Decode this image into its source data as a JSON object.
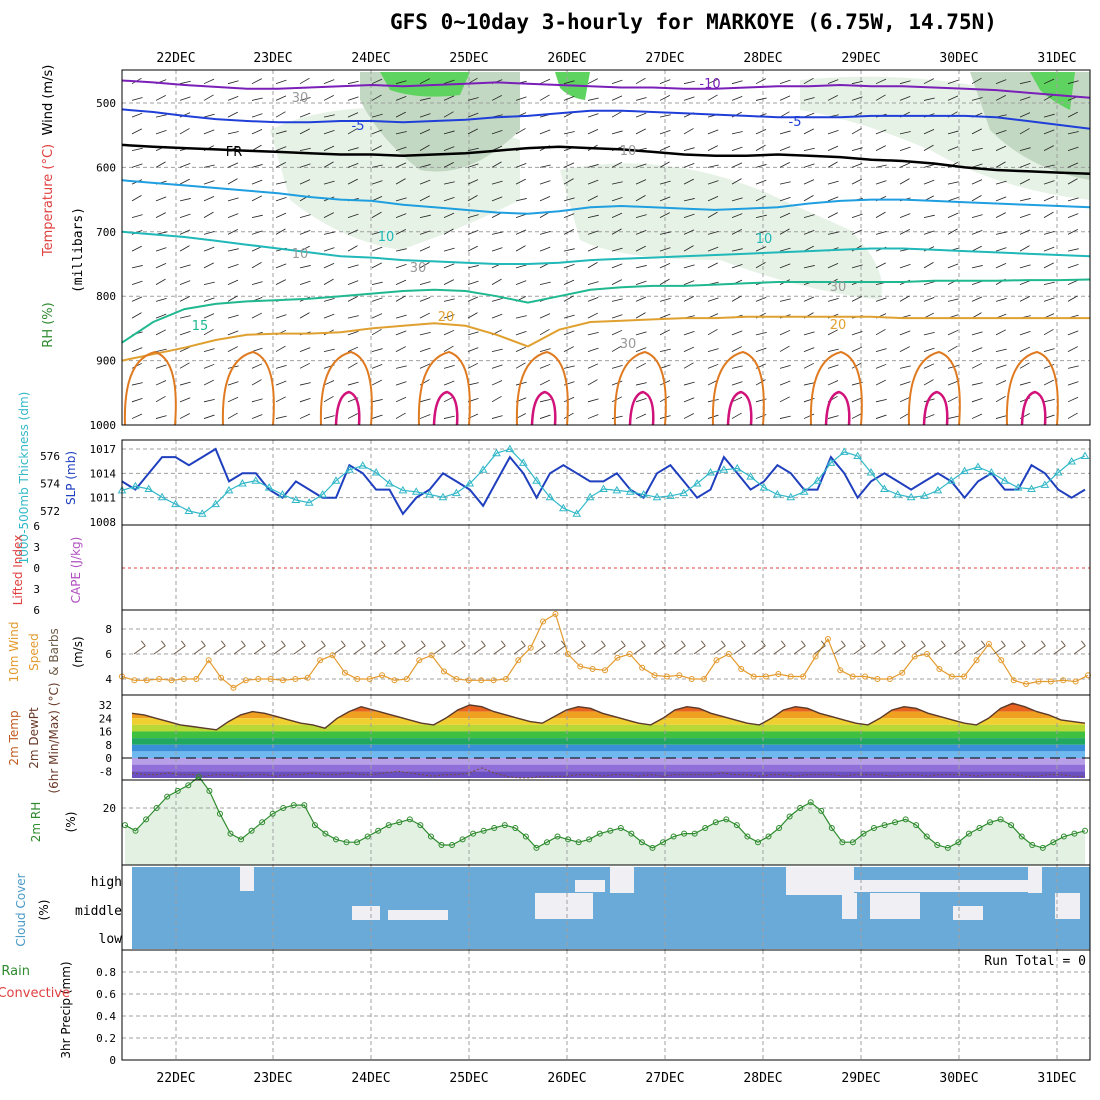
{
  "title": "GFS 0~10day 3-hourly for MARKOYE (6.75W, 14.75N)",
  "dates": [
    "22DEC",
    "23DEC",
    "24DEC",
    "25DEC",
    "26DEC",
    "27DEC",
    "28DEC",
    "29DEC",
    "30DEC",
    "31DEC"
  ],
  "colors": {
    "grid": "#a0a0a0",
    "rh_light": "#e6f2e6",
    "rh_mid": "#c2d8c2",
    "rh_green": "#5fd35f",
    "cloud": "#6aaad8",
    "wind_speed": "#e39a2e",
    "rh2m": "#2e8b2e",
    "slp": "#1f3fbf",
    "thickness": "#33b8c8"
  },
  "chart_data": [
    {
      "type": "line",
      "panel": "upper_air",
      "ylabel_parts": [
        "RH (%)",
        "Temperature (°C)",
        "Wind (m/s)"
      ],
      "ylabel2": "(millibars)",
      "yticks": [
        500,
        600,
        700,
        800,
        900,
        1000
      ],
      "ylim": [
        1000,
        450
      ],
      "contour_labels": [
        "-10",
        "-5",
        "FR",
        "-5",
        "10",
        "15",
        "20",
        "30",
        "10",
        "30",
        "10",
        "10",
        "20",
        "30",
        "30"
      ],
      "isotherms": [
        {
          "name": "-10",
          "color": "#7a1fb8",
          "p": [
            465,
            468,
            472,
            475,
            478,
            478,
            476,
            474,
            472,
            474,
            472,
            470,
            468,
            470,
            472,
            474,
            476,
            476,
            478,
            478,
            476,
            474,
            474,
            472,
            474,
            474,
            476,
            478,
            480,
            484,
            488,
            492
          ]
        },
        {
          "name": "-5",
          "color": "#1f3fd8",
          "p": [
            510,
            514,
            520,
            525,
            528,
            530,
            530,
            528,
            528,
            530,
            528,
            526,
            522,
            520,
            516,
            512,
            512,
            514,
            516,
            518,
            520,
            522,
            522,
            522,
            520,
            520,
            520,
            520,
            522,
            528,
            534,
            540
          ]
        },
        {
          "name": "FR",
          "color": "#000000",
          "p": [
            565,
            568,
            570,
            572,
            574,
            576,
            578,
            580,
            580,
            582,
            580,
            578,
            574,
            570,
            568,
            570,
            572,
            576,
            580,
            582,
            582,
            580,
            582,
            584,
            588,
            590,
            594,
            600,
            604,
            606,
            608,
            610
          ]
        },
        {
          "name": "-5",
          "color": "#1f9fe0",
          "p": [
            620,
            624,
            628,
            632,
            636,
            640,
            646,
            650,
            652,
            658,
            662,
            666,
            670,
            672,
            668,
            662,
            660,
            662,
            664,
            666,
            664,
            662,
            656,
            652,
            650,
            650,
            652,
            654,
            656,
            658,
            660,
            662
          ]
        },
        {
          "name": "10",
          "color": "#20b8b8",
          "p": [
            700,
            704,
            708,
            714,
            720,
            726,
            732,
            738,
            740,
            744,
            746,
            748,
            750,
            750,
            748,
            744,
            742,
            740,
            738,
            736,
            734,
            732,
            730,
            728,
            726,
            726,
            728,
            730,
            732,
            734,
            736,
            738
          ]
        },
        {
          "name": "15",
          "color": "#20b890",
          "p": [
            872,
            840,
            820,
            812,
            808,
            806,
            804,
            800,
            796,
            792,
            790,
            792,
            800,
            810,
            800,
            790,
            786,
            784,
            784,
            782,
            780,
            778,
            778,
            778,
            778,
            778,
            776,
            776,
            776,
            775,
            775,
            774
          ]
        },
        {
          "name": "20",
          "color": "#e0a030",
          "p": [
            900,
            890,
            880,
            868,
            860,
            858,
            858,
            856,
            850,
            846,
            842,
            846,
            860,
            878,
            852,
            840,
            838,
            836,
            834,
            834,
            832,
            832,
            832,
            832,
            832,
            834,
            834,
            834,
            834,
            834,
            834,
            834
          ]
        }
      ]
    },
    {
      "type": "line",
      "panel": "slp_thickness",
      "ylabel_left": "1000-500mb Thickness (dm)",
      "ylabel_right": "SLP (mb)",
      "yticks_left": [
        572,
        574,
        576
      ],
      "yticks_right": [
        1008,
        1011,
        1014,
        1017
      ],
      "series": [
        {
          "name": "SLP (mb)",
          "values": [
            1013,
            1012,
            1014,
            1016,
            1016,
            1015,
            1016,
            1017,
            1013,
            1014,
            1014,
            1012,
            1011,
            1013,
            1012,
            1011,
            1011,
            1015,
            1014,
            1012,
            1012,
            1009,
            1011,
            1012,
            1014,
            1013,
            1012,
            1010,
            1013,
            1016,
            1014,
            1011,
            1014,
            1015,
            1014,
            1013,
            1013,
            1014,
            1012,
            1011,
            1014,
            1015,
            1013,
            1011,
            1012,
            1016,
            1014,
            1012,
            1013,
            1015,
            1014,
            1012,
            1012,
            1016,
            1014,
            1011,
            1013,
            1014,
            1013,
            1012,
            1013,
            1014,
            1013,
            1011,
            1013,
            1014,
            1012,
            1012,
            1015,
            1014,
            1012,
            1011,
            1012
          ]
        },
        {
          "name": "1000-500mb Thickness (dm)",
          "values": [
            573.5,
            573.8,
            573.6,
            573.0,
            572.5,
            572.0,
            571.8,
            572.5,
            573.5,
            574.0,
            574.2,
            573.7,
            573.2,
            572.8,
            572.6,
            573.2,
            574.2,
            575.0,
            575.3,
            574.8,
            574.0,
            573.5,
            573.4,
            573.2,
            573.0,
            573.3,
            574.0,
            575.0,
            576.2,
            576.5,
            575.5,
            574.2,
            573.0,
            572.2,
            571.8,
            573.0,
            573.6,
            573.5,
            573.4,
            573.2,
            573.0,
            573.1,
            573.3,
            574.0,
            574.8,
            575.0,
            575.1,
            574.5,
            573.7,
            573.2,
            573.0,
            573.4,
            574.2,
            575.5,
            576.3,
            576.0,
            574.8,
            573.6,
            573.2,
            573.0,
            573.1,
            573.5,
            574.2,
            574.9,
            575.2,
            574.8,
            574.2,
            573.7,
            573.6,
            573.9,
            574.8,
            575.6,
            576.0
          ]
        }
      ]
    },
    {
      "type": "line",
      "panel": "cape_li",
      "ylabel_left": "Lifted Index",
      "ylabel_right": "CAPE (J/kg)",
      "yticks": [
        -6,
        -3,
        0,
        3,
        6
      ],
      "values": []
    },
    {
      "type": "line",
      "panel": "wind10m",
      "ylabel": [
        "10m Wind",
        "Speed",
        "& Barbs",
        "(m/s)"
      ],
      "yticks": [
        4,
        6,
        8
      ],
      "series": [
        {
          "name": "10m Wind Speed",
          "values": [
            4.2,
            3.9,
            3.9,
            4.0,
            3.9,
            4.0,
            4.0,
            5.5,
            4.1,
            3.3,
            3.9,
            4.0,
            4.0,
            3.9,
            4.0,
            4.1,
            5.5,
            5.9,
            4.5,
            4.0,
            4.0,
            4.3,
            3.9,
            4.0,
            5.5,
            5.9,
            4.6,
            4.0,
            3.9,
            3.9,
            3.9,
            4.0,
            5.5,
            6.5,
            8.6,
            9.2,
            6.0,
            5.0,
            4.8,
            4.7,
            5.7,
            6.0,
            4.9,
            4.3,
            4.2,
            4.3,
            4.0,
            4.0,
            5.5,
            6.0,
            4.8,
            4.2,
            4.2,
            4.4,
            4.2,
            4.2,
            5.8,
            7.2,
            4.7,
            4.2,
            4.2,
            4.0,
            4.0,
            4.5,
            5.8,
            6.0,
            4.8,
            4.2,
            4.2,
            5.5,
            6.8,
            5.5,
            3.9,
            3.6,
            3.8,
            3.8,
            3.9,
            3.8,
            4.3
          ]
        }
      ]
    },
    {
      "type": "area",
      "panel": "temp2m",
      "ylabel": [
        "2m Temp",
        "2m DewPt",
        "(6hr Min/Max) (°C)"
      ],
      "yticks": [
        -8,
        0,
        8,
        16,
        24,
        32
      ],
      "series": [
        {
          "name": "2m Temp",
          "values": [
            27,
            26,
            24,
            22,
            20,
            19,
            18,
            17,
            22,
            26,
            28,
            27,
            25,
            23,
            21,
            20,
            18,
            24,
            28,
            31,
            29,
            27,
            25,
            23,
            21,
            20,
            24,
            29,
            32,
            31,
            28,
            26,
            24,
            22,
            21,
            25,
            29,
            31,
            30,
            27,
            25,
            23,
            21,
            20,
            24,
            29,
            31,
            30,
            27,
            25,
            23,
            21,
            20,
            24,
            29,
            31,
            30,
            27,
            25,
            23,
            21,
            20,
            24,
            29,
            31,
            30,
            27,
            25,
            23,
            21,
            20,
            24,
            30,
            33,
            31,
            28,
            26,
            23,
            22,
            21
          ]
        },
        {
          "name": "2m DewPt",
          "values": [
            -9,
            -10,
            -10,
            -9,
            -10,
            -10,
            -11,
            -10,
            -10,
            -11,
            -10,
            -10,
            -11,
            -10,
            -10,
            -9,
            -10,
            -10,
            -9,
            -10,
            -10,
            -9,
            -8,
            -9,
            -10,
            -11,
            -10,
            -10,
            -9,
            -6,
            -9,
            -11,
            -12,
            -12,
            -11,
            -11,
            -11,
            -10,
            -10,
            -11,
            -10,
            -10,
            -11,
            -10,
            -11,
            -10,
            -10,
            -10,
            -10,
            -9,
            -10,
            -10,
            -11,
            -10,
            -10,
            -11,
            -10,
            -10,
            -10,
            -11,
            -10,
            -10,
            -10,
            -11,
            -10,
            -10,
            -11,
            -10,
            -10,
            -10,
            -11,
            -10,
            -10,
            -10,
            -11,
            -11,
            -10,
            -10,
            -11,
            -11
          ]
        }
      ]
    },
    {
      "type": "line",
      "panel": "rh2m",
      "ylabel": [
        "2m RH",
        "(%)"
      ],
      "yticks": [
        20
      ],
      "series": [
        {
          "name": "2m RH",
          "values": [
            14,
            12,
            16,
            20,
            24,
            26,
            28,
            31,
            26,
            18,
            11,
            9,
            12,
            15,
            18,
            20,
            21,
            21,
            14,
            11,
            9,
            8,
            8,
            10,
            12,
            14,
            15,
            16,
            14,
            10,
            7,
            7,
            9,
            11,
            12,
            13,
            14,
            13,
            10,
            6,
            8,
            10,
            9,
            8,
            9,
            11,
            12,
            13,
            11,
            8,
            6,
            8,
            10,
            11,
            11,
            13,
            15,
            16,
            14,
            10,
            8,
            10,
            13,
            17,
            20,
            22,
            19,
            13,
            8,
            8,
            11,
            13,
            14,
            15,
            16,
            14,
            10,
            7,
            6,
            8,
            11,
            13,
            15,
            16,
            14,
            10,
            7,
            6,
            8,
            10,
            11,
            12
          ]
        }
      ]
    },
    {
      "type": "heatmap",
      "panel": "cloud",
      "ylabel": [
        "Cloud Cover",
        "(%)"
      ],
      "levels": [
        "high",
        "middle",
        "low"
      ]
    },
    {
      "type": "bar",
      "panel": "precip",
      "ylabel": [
        "3hr Precip (mm)"
      ],
      "legend": [
        "Total / Rain",
        "Convective"
      ],
      "annotation": "Run Total = 0",
      "yticks": [
        0,
        0.2,
        0.4,
        0.6,
        0.8
      ],
      "ylim": [
        0,
        1.0
      ],
      "values": []
    }
  ]
}
